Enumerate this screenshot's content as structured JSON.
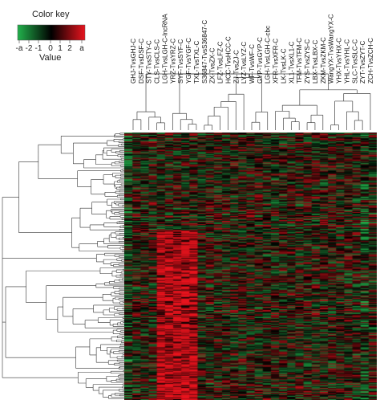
{
  "chart_data": {
    "type": "heatmap",
    "title": "",
    "color_key": {
      "title": "Color key",
      "ticks": [
        "-a",
        "-2",
        "-1",
        "0",
        "1",
        "2",
        "a"
      ],
      "axis_label": "Value",
      "colors": [
        "#22b14c",
        "#000000",
        "#e8141e"
      ]
    },
    "columns": [
      "GHJ-TvsGHJ-C",
      "DSF-TvsDSF-C",
      "STY-TvsSTY-C",
      "CLS-TvsCLS-C",
      "LGH-TvsLGH-C-lncRNA",
      "YRZ-TvsYRZ-C",
      "SYF-TvsSYF-C",
      "YGF-TvsYGF-C",
      "TXL-TvsTXL-C",
      "S36847-TvsS36847-C",
      "ZX-TvsZX-C",
      "LFZ-TvsLFZ-C",
      "HCC-TvsHCC-C",
      "ZJ-TvsZJ-C",
      "LYZ-TvsLYZ-C",
      "WF-TvsWF-C",
      "GYP-TvsGYP-C",
      "LGH-TvsLGH-C-cbc",
      "XFR-TvsXFR-C",
      "LK-TvsLK-C",
      "XL1-TvsXL1-C",
      "TFM-TvsTFM-C",
      "ZYS-TvsZYS-C",
      "LBX-TvsLBX-C",
      "ZKM-TvsZKM-C",
      "WangYX-TvsWangYX-C",
      "YHX-TvsYHX-C",
      "YHL-TvsYHL-C",
      "SLC-TvsSLC-C",
      "ZYT-TvsZYT-C",
      "ZCH-TvsZCH-C"
    ],
    "legend_placement": "top-left",
    "grid": false
  }
}
